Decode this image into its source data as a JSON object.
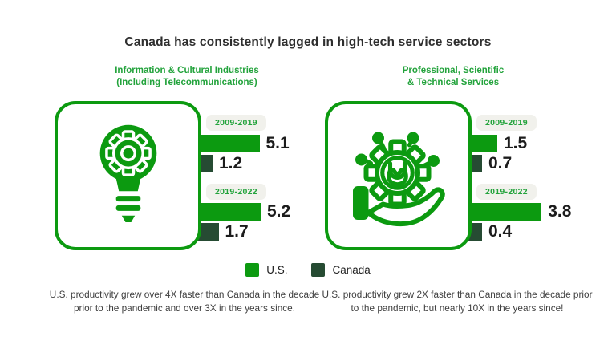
{
  "title": "Canada has consistently lagged in high-tech service sectors",
  "colors": {
    "us_green": "#0c9a10",
    "canada_green": "#264b33",
    "text_green": "#23a33c",
    "pill_bg": "#f1f1ec",
    "title_dark": "#2e2e2e",
    "caption_dark": "#3f3f3f",
    "value_dark": "#1c1c1c"
  },
  "chart_data": [
    {
      "type": "bar",
      "orientation": "horizontal",
      "title_line1": "Information & Cultural Industries",
      "title_line2": "(Including Telecommunications)",
      "icon": "lightbulb-gear-icon",
      "categories": [
        "2009-2019",
        "2019-2022"
      ],
      "series": [
        {
          "name": "U.S.",
          "color": "#0c9a10",
          "values": [
            5.1,
            5.2
          ]
        },
        {
          "name": "Canada",
          "color": "#264b33",
          "values": [
            1.2,
            1.7
          ]
        }
      ],
      "data_labels": true,
      "legend_position": "bottom",
      "caption": "U.S. productivity grew over 4X faster than Canada in the decade prior to the pandemic and over 3X in the years since."
    },
    {
      "type": "bar",
      "orientation": "horizontal",
      "title_line1": "Professional, Scientific",
      "title_line2": "& Technical Services",
      "icon": "hand-gear-icon",
      "categories": [
        "2009-2019",
        "2019-2022"
      ],
      "series": [
        {
          "name": "U.S.",
          "color": "#0c9a10",
          "values": [
            1.5,
            3.8
          ]
        },
        {
          "name": "Canada",
          "color": "#264b33",
          "values": [
            0.7,
            0.4
          ]
        }
      ],
      "data_labels": true,
      "legend_position": "bottom",
      "caption": "U.S. productivity grew 2X faster than Canada in the decade prior to the pandemic, but nearly 10X in the years since!"
    }
  ]
}
